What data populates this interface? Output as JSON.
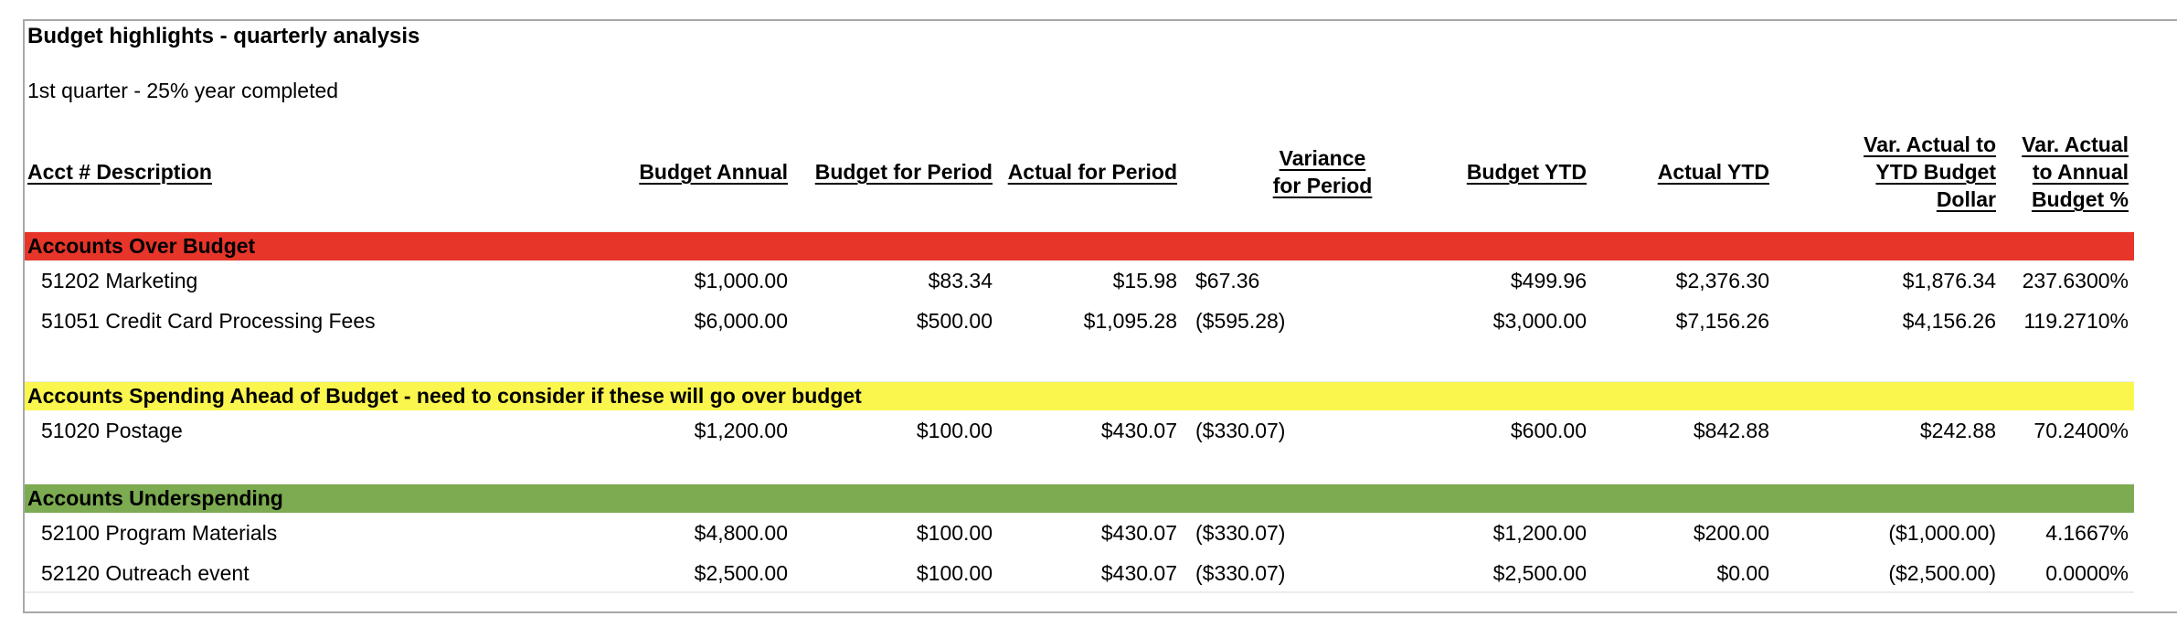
{
  "title": "Budget highlights - quarterly analysis",
  "subtitle": "1st quarter - 25% year completed",
  "colors": {
    "over_budget_banner": "#e73529",
    "ahead_of_budget_banner": "#fbf64e",
    "underspending_banner": "#7cab51",
    "sheet_border": "#a8a8a8",
    "text": "#000000"
  },
  "header": {
    "acct": "Acct # Description",
    "budget_annual": "Budget Annual",
    "budget_period": "Budget for Period",
    "actual_period": "Actual for Period",
    "variance_l1": "Variance",
    "variance_l2": "for Period",
    "budget_ytd": "Budget YTD",
    "actual_ytd": "Actual YTD",
    "var_ytd_l1": "Var. Actual to",
    "var_ytd_l2": "YTD Budget",
    "var_ytd_l3": "Dollar",
    "var_annual_l1": "Var. Actual",
    "var_annual_l2": "to Annual",
    "var_annual_l3": "Budget %"
  },
  "table": {
    "sections": [
      {
        "label": "Accounts Over Budget",
        "color": "#e73529",
        "rows": [
          {
            "acct": "51202 Marketing",
            "budget_annual": "$1,000.00",
            "budget_period": "$83.34",
            "actual_period": "$15.98",
            "variance_period": "$67.36",
            "budget_ytd": "$499.96",
            "actual_ytd": "$2,376.30",
            "var_ytd": "$1,876.34",
            "var_annual": "237.6300%"
          },
          {
            "acct": "51051 Credit Card Processing Fees",
            "budget_annual": "$6,000.00",
            "budget_period": "$500.00",
            "actual_period": "$1,095.28",
            "variance_period": "($595.28)",
            "budget_ytd": "$3,000.00",
            "actual_ytd": "$7,156.26",
            "var_ytd": "$4,156.26",
            "var_annual": "119.2710%"
          }
        ]
      },
      {
        "label": "Accounts Spending Ahead of Budget - need to consider if these will go over budget",
        "color": "#fbf64e",
        "rows": [
          {
            "acct": "51020 Postage",
            "budget_annual": "$1,200.00",
            "budget_period": "$100.00",
            "actual_period": "$430.07",
            "variance_period": "($330.07)",
            "budget_ytd": "$600.00",
            "actual_ytd": "$842.88",
            "var_ytd": "$242.88",
            "var_annual": "70.2400%"
          }
        ]
      },
      {
        "label": "Accounts Underspending",
        "color": "#7cab51",
        "rows": [
          {
            "acct": "52100 Program Materials",
            "budget_annual": "$4,800.00",
            "budget_period": "$100.00",
            "actual_period": "$430.07",
            "variance_period": "($330.07)",
            "budget_ytd": "$1,200.00",
            "actual_ytd": "$200.00",
            "var_ytd": "($1,000.00)",
            "var_annual": "4.1667%"
          },
          {
            "acct": "52120 Outreach event",
            "budget_annual": "$2,500.00",
            "budget_period": "$100.00",
            "actual_period": "$430.07",
            "variance_period": "($330.07)",
            "budget_ytd": "$2,500.00",
            "actual_ytd": "$0.00",
            "var_ytd": "($2,500.00)",
            "var_annual": "0.0000%"
          }
        ]
      }
    ]
  }
}
